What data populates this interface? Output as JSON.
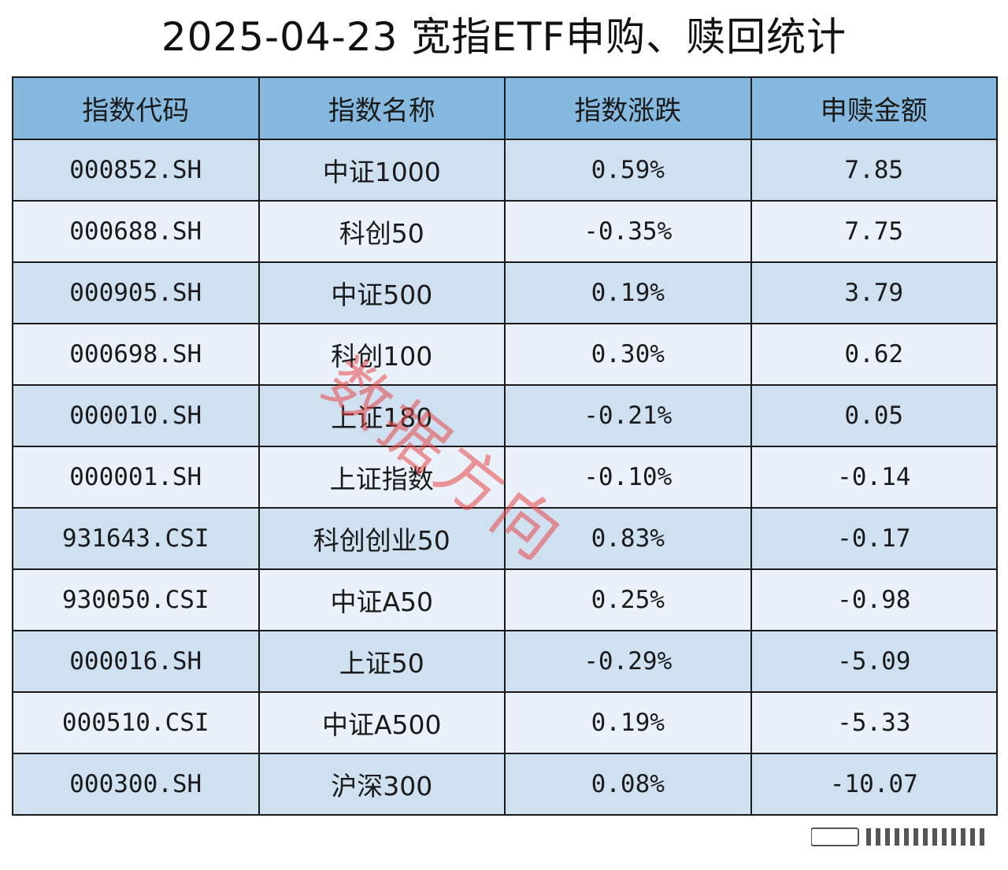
{
  "title": "2025-04-23 宽指ETF申购、赎回统计",
  "headers": {
    "code": "指数代码",
    "name": "指数名称",
    "change": "指数涨跌",
    "amount": "申赎金额"
  },
  "rows": [
    {
      "code": "000852.SH",
      "name": "中证1000",
      "change": "0.59%",
      "amount": "7.85"
    },
    {
      "code": "000688.SH",
      "name": "科创50",
      "change": "-0.35%",
      "amount": "7.75"
    },
    {
      "code": "000905.SH",
      "name": "中证500",
      "change": "0.19%",
      "amount": "3.79"
    },
    {
      "code": "000698.SH",
      "name": "科创100",
      "change": "0.30%",
      "amount": "0.62"
    },
    {
      "code": "000010.SH",
      "name": "上证180",
      "change": "-0.21%",
      "amount": "0.05"
    },
    {
      "code": "000001.SH",
      "name": "上证指数",
      "change": "-0.10%",
      "amount": "-0.14"
    },
    {
      "code": "931643.CSI",
      "name": "科创创业50",
      "change": "0.83%",
      "amount": "-0.17"
    },
    {
      "code": "930050.CSI",
      "name": "中证A50",
      "change": "0.25%",
      "amount": "-0.98"
    },
    {
      "code": "000016.SH",
      "name": "上证50",
      "change": "-0.29%",
      "amount": "-5.09"
    },
    {
      "code": "000510.CSI",
      "name": "中证A500",
      "change": "0.19%",
      "amount": "-5.33"
    },
    {
      "code": "000300.SH",
      "name": "沪深300",
      "change": "0.08%",
      "amount": "-10.07"
    }
  ],
  "watermark": "数据方向",
  "colors": {
    "header_bg": "#86b9df",
    "row_odd_bg": "#cfe0f0",
    "row_even_bg": "#eaf1fa",
    "border": "#1a1a1a",
    "watermark": "#e84646"
  }
}
